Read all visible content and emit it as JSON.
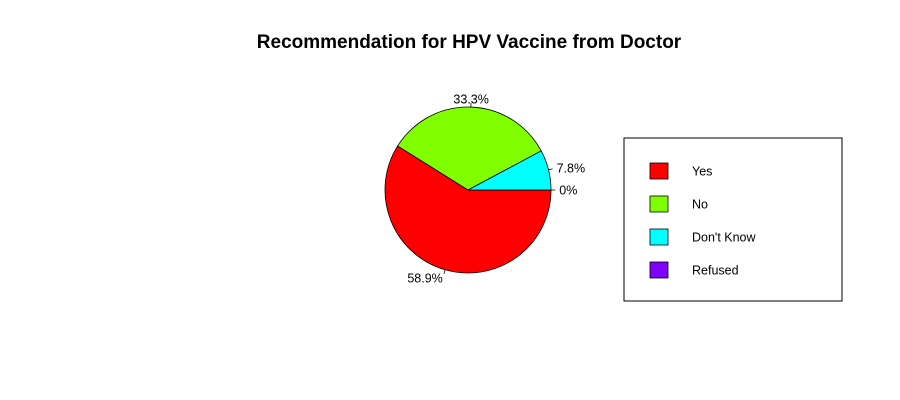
{
  "chart_data": {
    "type": "pie",
    "title": "Recommendation for HPV Vaccine from Doctor",
    "slices": [
      {
        "label": "Yes",
        "value": 58.9,
        "display": "58.9%",
        "color": "#ff0000"
      },
      {
        "label": "No",
        "value": 33.3,
        "display": "33.3%",
        "color": "#80ff00"
      },
      {
        "label": "Don't Know",
        "value": 7.8,
        "display": "7.8%",
        "color": "#00ffff"
      },
      {
        "label": "Refused",
        "value": 0,
        "display": "0%",
        "color": "#8000ff"
      }
    ],
    "start_angle_deg": 0,
    "direction": "clockwise",
    "legend_position": "right"
  }
}
